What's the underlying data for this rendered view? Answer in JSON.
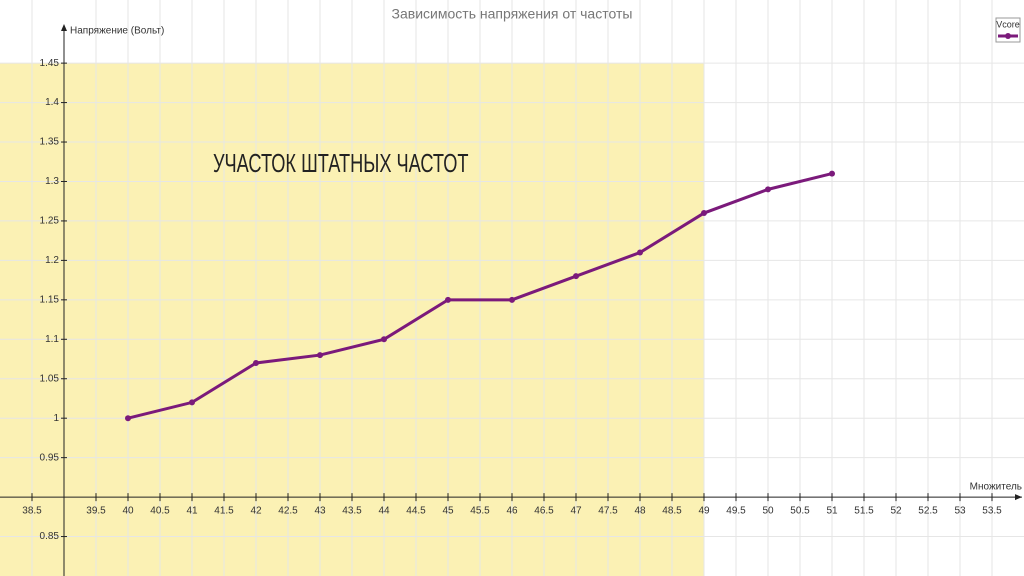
{
  "chart_data": {
    "type": "line",
    "title": "Зависимость напряжения от частоты",
    "y_label": "Напряжение (Вольт)",
    "x_label": "Множитель",
    "annotation": "УЧАСТОК ШТАТНЫХ ЧАСТОТ",
    "x": [
      40,
      41,
      42,
      43,
      44,
      45,
      46,
      47,
      48,
      49,
      50,
      51
    ],
    "series": [
      {
        "name": "Vcore",
        "color": "#7b1a7b",
        "values": [
          1.0,
          1.02,
          1.07,
          1.08,
          1.1,
          1.15,
          1.15,
          1.18,
          1.21,
          1.26,
          1.29,
          1.31
        ]
      }
    ],
    "xlim": [
      38,
      54
    ],
    "ylim": [
      0.8,
      1.53
    ],
    "xticks": [
      38.5,
      39.5,
      40,
      40.5,
      41,
      41.5,
      42,
      42.5,
      43,
      43.5,
      44,
      44.5,
      45,
      45.5,
      46,
      46.5,
      47,
      47.5,
      48,
      48.5,
      49,
      49.5,
      50,
      50.5,
      51,
      51.5,
      52,
      52.5,
      53,
      53.5
    ],
    "yticks": [
      0.85,
      0.95,
      1,
      1.05,
      1.1,
      1.15,
      1.2,
      1.25,
      1.3,
      1.35,
      1.4,
      1.45
    ],
    "x_axis_at": 0.9,
    "y_axis_at": 39,
    "highlight": {
      "x_end": 49,
      "y_top": 1.45,
      "color": "#fbf1b4"
    },
    "grid": true,
    "legend": "top-right"
  }
}
